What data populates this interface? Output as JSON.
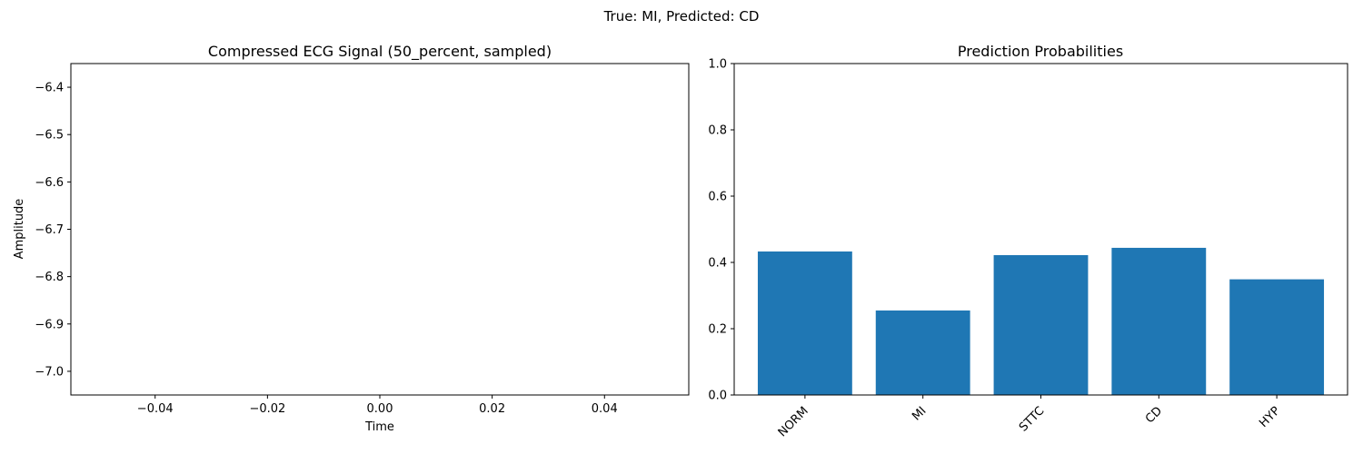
{
  "figure": {
    "suptitle": "True: MI, Predicted: CD"
  },
  "chart_data": [
    {
      "type": "line",
      "title": "Compressed ECG Signal (50_percent, sampled)",
      "xlabel": "Time",
      "ylabel": "Amplitude",
      "xlim": [
        -0.055,
        0.055
      ],
      "ylim": [
        -7.05,
        -6.35
      ],
      "xticks": [
        -0.04,
        -0.02,
        0.0,
        0.02,
        0.04
      ],
      "xtick_labels": [
        "−0.04",
        "−0.02",
        "0.00",
        "0.02",
        "0.04"
      ],
      "yticks": [
        -6.4,
        -6.5,
        -6.6,
        -6.7,
        -6.8,
        -6.9,
        -7.0
      ],
      "ytick_labels": [
        "−6.4",
        "−6.5",
        "−6.6",
        "−6.7",
        "−6.8",
        "−6.9",
        "−7.0"
      ],
      "series": [],
      "grid": false
    },
    {
      "type": "bar",
      "title": "Prediction Probabilities",
      "categories": [
        "NORM",
        "MI",
        "STTC",
        "CD",
        "HYP"
      ],
      "values": [
        0.433,
        0.255,
        0.422,
        0.444,
        0.349
      ],
      "ylim": [
        0,
        1
      ],
      "yticks": [
        0.0,
        0.2,
        0.4,
        0.6,
        0.8,
        1.0
      ],
      "ytick_labels": [
        "0.0",
        "0.2",
        "0.4",
        "0.6",
        "0.8",
        "1.0"
      ],
      "bar_color": "#1f77b4",
      "xtick_rotation_deg": 45,
      "grid": false
    }
  ]
}
